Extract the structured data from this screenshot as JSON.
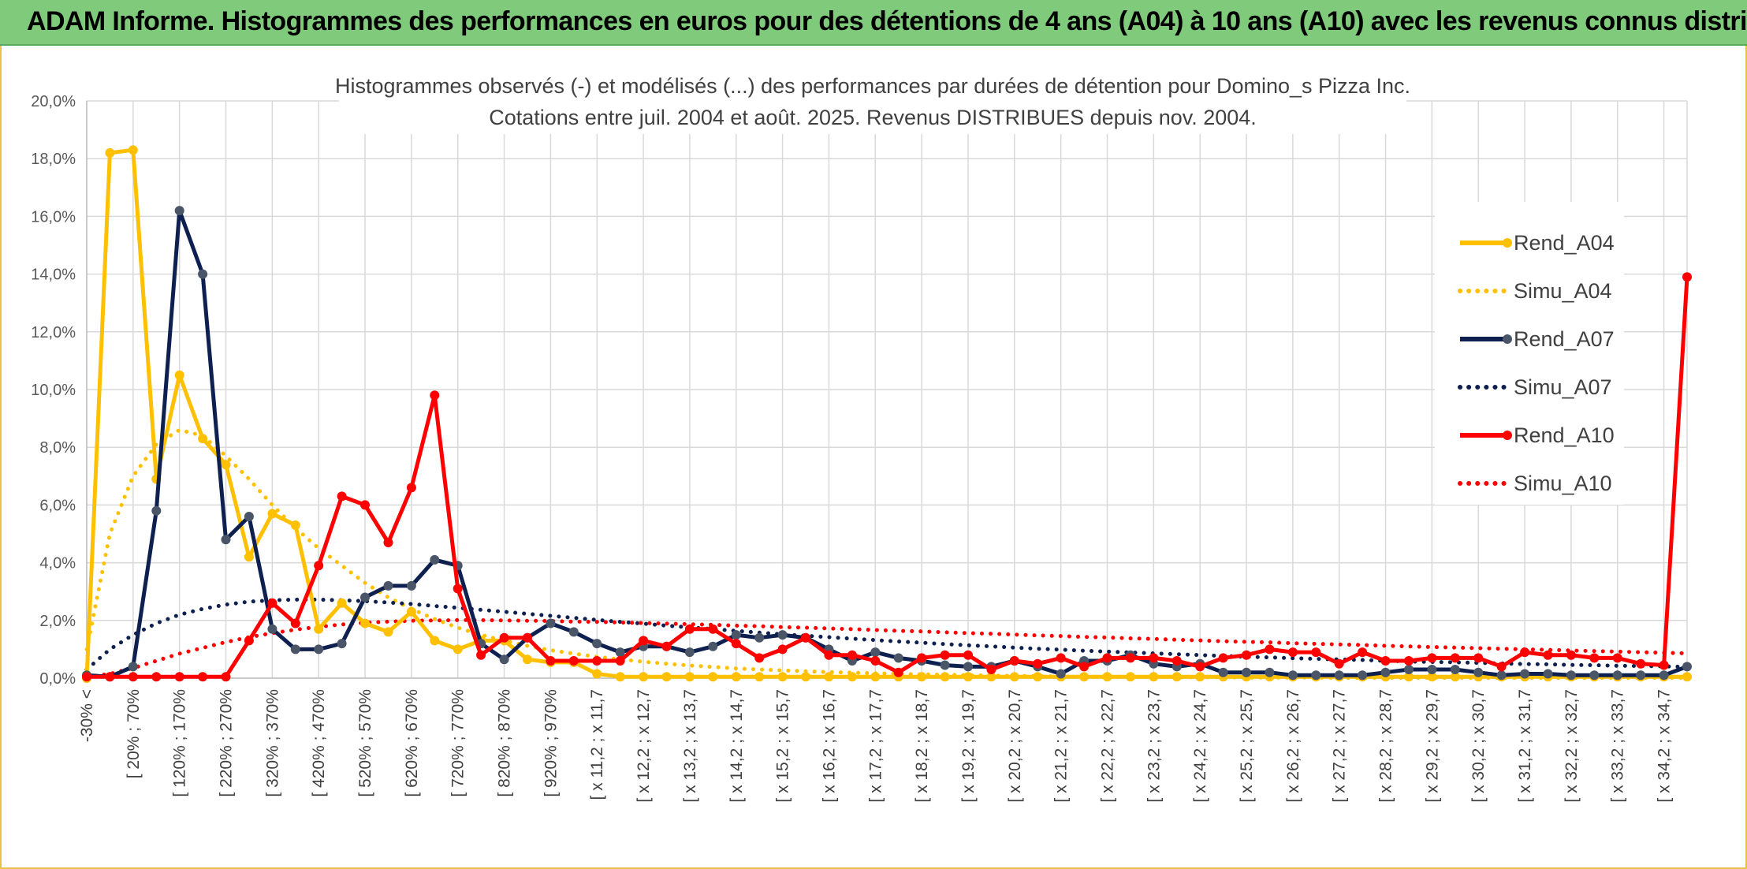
{
  "header": {
    "title": "ADAM Informe. Histogrammes des performances en euros pour des détentions de 4 ans (A04) à 10 ans (A10) avec les revenus connus distribués"
  },
  "colors": {
    "a04": "#ffc000",
    "a07": "#0e2050",
    "a07_marker": "#4a5568",
    "a10": "#ff0000",
    "grid": "#d9d9d9",
    "banner": "#7fcb7b"
  },
  "chart_data": {
    "type": "line",
    "title": "Histogrammes observés (-) et modélisés (...) des performances par durées de détention pour Domino_s Pizza Inc.",
    "subtitle": "Cotations entre juil. 2004 et août. 2025. Revenus DISTRIBUES depuis nov. 2004.",
    "ylim": [
      0,
      20
    ],
    "y_ticks": [
      "0,0%",
      "2,0%",
      "4,0%",
      "6,0%",
      "8,0%",
      "10,0%",
      "12,0%",
      "14,0%",
      "16,0%",
      "18,0%",
      "20,0%"
    ],
    "grid": true,
    "legend_position": "right",
    "x_tick_labels": [
      "-30% <",
      "[ 20% ; 70%",
      "[ 120% ; 170%",
      "[ 220% ; 270%",
      "[ 320% ; 370%",
      "[ 420% ; 470%",
      "[ 520% ; 570%",
      "[ 620% ; 670%",
      "[ 720% ; 770%",
      "[ 820% ; 870%",
      "[ 920% ; 970%",
      "[ x 11,2 ; x 11,7",
      "[ x 12,2 ; x 12,7",
      "[ x 13,2 ; x 13,7",
      "[ x 14,2 ; x 14,7",
      "[ x 15,2 ; x 15,7",
      "[ x 16,2 ; x 16,7",
      "[ x 17,2 ; x 17,7",
      "[ x 18,2 ; x 18,7",
      "[ x 19,2 ; x 19,7",
      "[ x 20,2 ; x 20,7",
      "[ x 21,2 ; x 21,7",
      "[ x 22,2 ; x 22,7",
      "[ x 23,2 ; x 23,7",
      "[ x 24,2 ; x 24,7",
      "[ x 25,2 ; x 25,7",
      "[ x 26,2 ; x 26,7",
      "[ x 27,2 ; x 27,7",
      "[ x 28,2 ; x 28,7",
      "[ x 29,2 ; x 29,7",
      "[ x 30,2 ; x 30,7",
      "[ x 31,2 ; x 31,7",
      "[ x 32,2 ; x 32,7",
      "[ x 33,2 ; x 33,7",
      "[ x 34,2 ; x 34,7"
    ],
    "series": [
      {
        "name": "Rend_A04",
        "style": "solid",
        "color": "#ffc000",
        "values": [
          0,
          18.2,
          18.3,
          6.9,
          10.5,
          8.3,
          7.4,
          4.2,
          5.7,
          5.3,
          1.7,
          2.6,
          1.9,
          1.6,
          2.3,
          1.3,
          1.0,
          1.3,
          1.3,
          0.65,
          0.55,
          0.55,
          0.15,
          0.05,
          0.05,
          0.05,
          0.05,
          0.05,
          0.05,
          0.05,
          0.05,
          0.05,
          0.05,
          0.05,
          0.05,
          0.05,
          0.05,
          0.05,
          0.05,
          0.05,
          0.05,
          0.05,
          0.05,
          0.05,
          0.05,
          0.05,
          0.05,
          0.05,
          0.05,
          0.05,
          0.05,
          0.05,
          0.05,
          0.05,
          0.05,
          0.05,
          0.05,
          0.05,
          0.05,
          0.05,
          0.05,
          0.05,
          0.05,
          0.05,
          0.05,
          0.05,
          0.05,
          0.05,
          0.05,
          0.05
        ]
      },
      {
        "name": "Simu_A04",
        "style": "dotted",
        "color": "#ffc000",
        "values": [
          1.0,
          5.0,
          7.0,
          8.1,
          8.6,
          8.4,
          7.7,
          6.9,
          6.0,
          5.2,
          4.5,
          3.9,
          3.3,
          2.8,
          2.4,
          2.05,
          1.75,
          1.5,
          1.3,
          1.12,
          0.97,
          0.85,
          0.74,
          0.65,
          0.57,
          0.5,
          0.44,
          0.39,
          0.34,
          0.3,
          0.27,
          0.24,
          0.21,
          0.19,
          0.17,
          0.15,
          0.13,
          0.12,
          0.1,
          0.09,
          0.08,
          0.07,
          0.06,
          0.05,
          0.05,
          0.04,
          0.04,
          0.03,
          0.03,
          0.03,
          0.02,
          0.02,
          0.02,
          0.02,
          0.01,
          0.01,
          0.01,
          0.01,
          0.01,
          0.01,
          0.01,
          0.01,
          0.01,
          0.01,
          0.01,
          0.01,
          0.01,
          0.01,
          0.01,
          0.01
        ]
      },
      {
        "name": "Rend_A07",
        "style": "solid",
        "color": "#0e2050",
        "values": [
          0.1,
          0.05,
          0.4,
          5.8,
          16.2,
          14.0,
          4.8,
          5.6,
          1.7,
          1.0,
          1.0,
          1.2,
          2.8,
          3.2,
          3.2,
          4.1,
          3.9,
          1.2,
          0.65,
          1.4,
          1.9,
          1.6,
          1.2,
          0.9,
          1.1,
          1.1,
          0.9,
          1.1,
          1.5,
          1.4,
          1.5,
          1.4,
          1.0,
          0.6,
          0.9,
          0.7,
          0.6,
          0.45,
          0.4,
          0.4,
          0.6,
          0.4,
          0.15,
          0.6,
          0.6,
          0.8,
          0.5,
          0.4,
          0.5,
          0.2,
          0.2,
          0.2,
          0.1,
          0.1,
          0.1,
          0.1,
          0.2,
          0.3,
          0.3,
          0.3,
          0.2,
          0.1,
          0.15,
          0.15,
          0.1,
          0.1,
          0.1,
          0.1,
          0.1,
          0.4
        ]
      },
      {
        "name": "Simu_A07",
        "style": "dotted",
        "color": "#0e2050",
        "values": [
          0.3,
          1.0,
          1.5,
          1.9,
          2.2,
          2.4,
          2.55,
          2.65,
          2.7,
          2.72,
          2.72,
          2.7,
          2.67,
          2.62,
          2.57,
          2.5,
          2.44,
          2.37,
          2.3,
          2.23,
          2.16,
          2.09,
          2.02,
          1.95,
          1.89,
          1.82,
          1.76,
          1.7,
          1.64,
          1.58,
          1.52,
          1.47,
          1.42,
          1.37,
          1.32,
          1.27,
          1.23,
          1.18,
          1.14,
          1.1,
          1.06,
          1.02,
          0.99,
          0.95,
          0.92,
          0.89,
          0.86,
          0.83,
          0.8,
          0.77,
          0.74,
          0.72,
          0.69,
          0.67,
          0.65,
          0.63,
          0.6,
          0.58,
          0.56,
          0.55,
          0.53,
          0.51,
          0.49,
          0.48,
          0.46,
          0.45,
          0.43,
          0.42,
          0.41,
          0.39
        ]
      },
      {
        "name": "Rend_A10",
        "style": "solid",
        "color": "#ff0000",
        "values": [
          0.05,
          0.05,
          0.05,
          0.05,
          0.05,
          0.05,
          0.05,
          1.3,
          2.6,
          1.9,
          3.9,
          6.3,
          6.0,
          4.7,
          6.6,
          9.8,
          3.1,
          0.8,
          1.4,
          1.4,
          0.6,
          0.6,
          0.6,
          0.6,
          1.3,
          1.1,
          1.7,
          1.7,
          1.2,
          0.7,
          1.0,
          1.4,
          0.8,
          0.8,
          0.6,
          0.2,
          0.7,
          0.8,
          0.8,
          0.3,
          0.6,
          0.5,
          0.7,
          0.4,
          0.7,
          0.7,
          0.7,
          0.6,
          0.4,
          0.7,
          0.8,
          1.0,
          0.9,
          0.9,
          0.5,
          0.9,
          0.6,
          0.6,
          0.7,
          0.7,
          0.7,
          0.4,
          0.9,
          0.8,
          0.8,
          0.7,
          0.7,
          0.5,
          0.45,
          13.9
        ]
      },
      {
        "name": "Simu_A10",
        "style": "dotted",
        "color": "#ff0000",
        "values": [
          0.05,
          0.15,
          0.35,
          0.6,
          0.85,
          1.05,
          1.25,
          1.42,
          1.56,
          1.68,
          1.78,
          1.86,
          1.92,
          1.96,
          1.99,
          2.0,
          2.01,
          2.01,
          2.0,
          1.99,
          1.98,
          1.96,
          1.95,
          1.93,
          1.91,
          1.89,
          1.87,
          1.85,
          1.82,
          1.8,
          1.77,
          1.75,
          1.72,
          1.7,
          1.67,
          1.64,
          1.62,
          1.59,
          1.56,
          1.54,
          1.51,
          1.48,
          1.46,
          1.43,
          1.41,
          1.38,
          1.36,
          1.33,
          1.31,
          1.28,
          1.26,
          1.24,
          1.21,
          1.19,
          1.17,
          1.15,
          1.12,
          1.1,
          1.08,
          1.06,
          1.04,
          1.02,
          1.0,
          0.98,
          0.96,
          0.94,
          0.92,
          0.9,
          0.88,
          0.86
        ]
      }
    ]
  }
}
